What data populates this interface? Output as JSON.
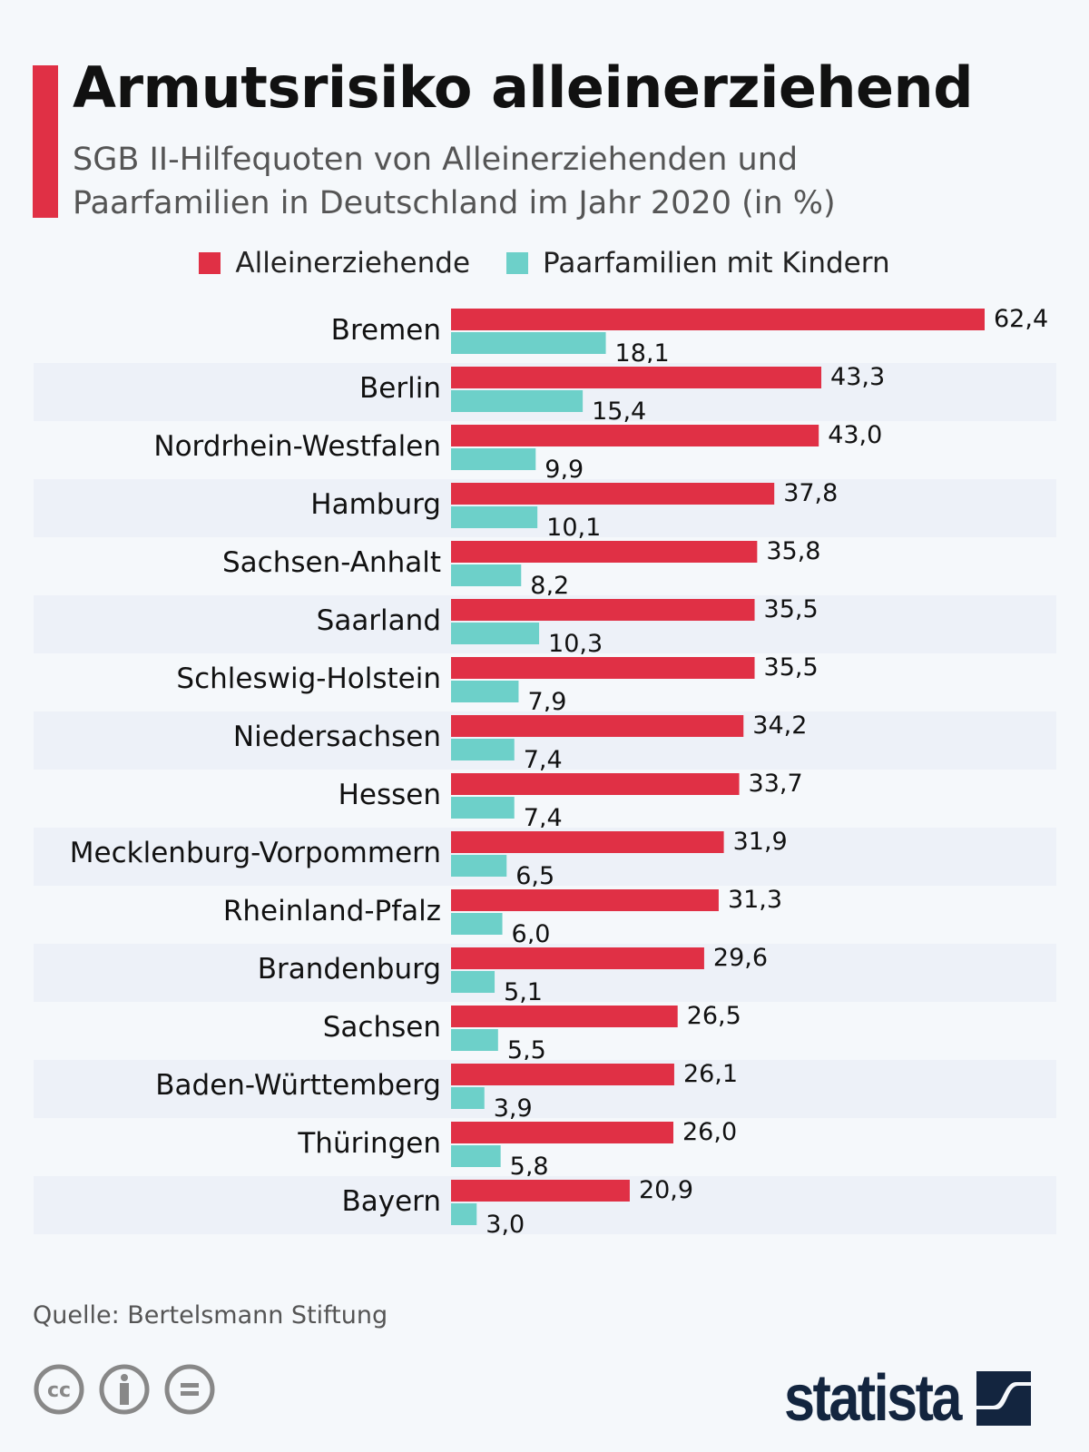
{
  "header": {
    "title": "Armutsrisiko alleinerziehend",
    "subtitle": "SGB II-Hilfequoten von Alleinerziehenden und Paarfamilien in Deutschland im Jahr 2020 (in %)"
  },
  "colors": {
    "accent": "#e03045",
    "series1": "#e03045",
    "series2": "#6dd0c9",
    "band": "#edf1f8",
    "background": "#f5f8fb",
    "logo": "#13253f"
  },
  "chart_data": {
    "type": "bar",
    "orientation": "horizontal",
    "grid": false,
    "legend_placement": "top",
    "categories": [
      "Bremen",
      "Berlin",
      "Nordrhein-Westfalen",
      "Hamburg",
      "Sachsen-Anhalt",
      "Saarland",
      "Schleswig-Holstein",
      "Niedersachsen",
      "Hessen",
      "Mecklenburg-Vorpommern",
      "Rheinland-Pfalz",
      "Brandenburg",
      "Sachsen",
      "Baden-Württemberg",
      "Thüringen",
      "Bayern"
    ],
    "series": [
      {
        "name": "Alleinerziehende",
        "values": [
          62.4,
          43.3,
          43.0,
          37.8,
          35.8,
          35.5,
          35.5,
          34.2,
          33.7,
          31.9,
          31.3,
          29.6,
          26.5,
          26.1,
          26.0,
          20.9
        ],
        "labels": [
          "62,4",
          "43,3",
          "43,0",
          "37,8",
          "35,8",
          "35,5",
          "35,5",
          "34,2",
          "33,7",
          "31,9",
          "31,3",
          "29,6",
          "26,5",
          "26,1",
          "26,0",
          "20,9"
        ]
      },
      {
        "name": "Paarfamilien mit Kindern",
        "values": [
          18.1,
          15.4,
          9.9,
          10.1,
          8.2,
          10.3,
          7.9,
          7.4,
          7.4,
          6.5,
          6.0,
          5.1,
          5.5,
          3.9,
          5.8,
          3.0
        ],
        "labels": [
          "18,1",
          "15,4",
          "9,9",
          "10,1",
          "8,2",
          "10,3",
          "7,9",
          "7,4",
          "7,4",
          "6,5",
          "6,0",
          "5,1",
          "5,5",
          "3,9",
          "5,8",
          "3,0"
        ]
      }
    ],
    "xlim": [
      0,
      62.4
    ]
  },
  "footer": {
    "source": "Quelle: Bertelsmann Stiftung",
    "logo_text": "statista",
    "license_icons": [
      "cc-icon",
      "attribution-icon",
      "no-derivatives-icon"
    ]
  }
}
